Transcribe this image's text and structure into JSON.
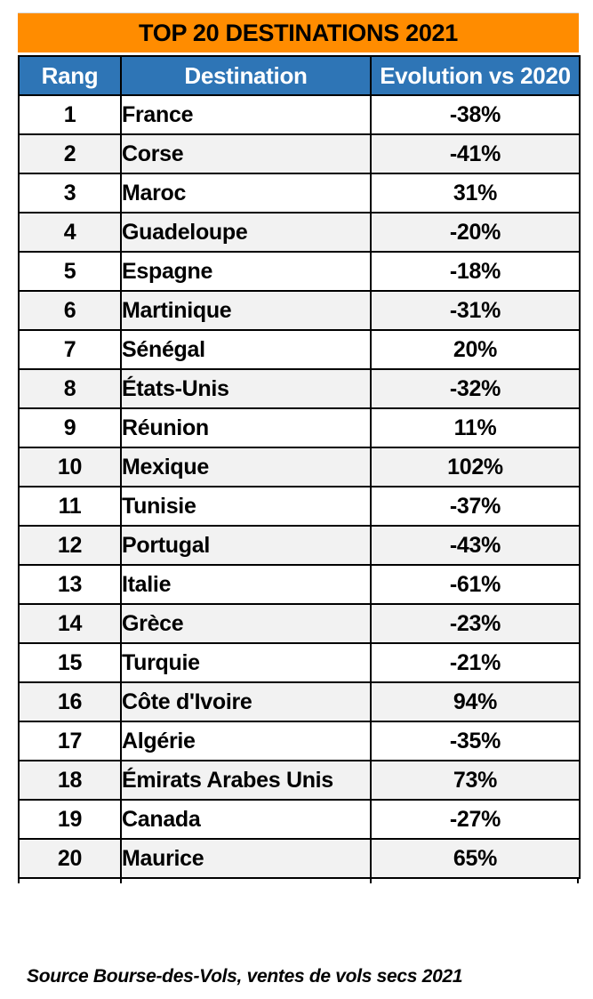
{
  "title": "TOP 20 DESTINATIONS 2021",
  "source_note": "Source Bourse-des-Vols, ventes de vols secs 2021",
  "colors": {
    "title_bg": "#FF8C00",
    "header_bg": "#2E75B6",
    "header_text": "#ffffff",
    "row_alt_bg": "#F2F2F2",
    "border": "#000000",
    "text": "#000000"
  },
  "chart_data": {
    "type": "table",
    "title": "TOP 20 DESTINATIONS 2021",
    "columns": [
      "Rang",
      "Destination",
      "Evolution vs 2020"
    ],
    "rows": [
      [
        "1",
        "France",
        "-38%"
      ],
      [
        "2",
        "Corse",
        "-41%"
      ],
      [
        "3",
        "Maroc",
        "31%"
      ],
      [
        "4",
        "Guadeloupe",
        "-20%"
      ],
      [
        "5",
        "Espagne",
        "-18%"
      ],
      [
        "6",
        "Martinique",
        "-31%"
      ],
      [
        "7",
        "Sénégal",
        "20%"
      ],
      [
        "8",
        "États-Unis",
        "-32%"
      ],
      [
        "9",
        "Réunion",
        "11%"
      ],
      [
        "10",
        "Mexique",
        "102%"
      ],
      [
        "11",
        "Tunisie",
        "-37%"
      ],
      [
        "12",
        "Portugal",
        "-43%"
      ],
      [
        "13",
        "Italie",
        "-61%"
      ],
      [
        "14",
        "Grèce",
        "-23%"
      ],
      [
        "15",
        "Turquie",
        "-21%"
      ],
      [
        "16",
        "Côte d'Ivoire",
        "94%"
      ],
      [
        "17",
        "Algérie",
        "-35%"
      ],
      [
        "18",
        "Émirats Arabes Unis",
        "73%"
      ],
      [
        "19",
        "Canada",
        "-27%"
      ],
      [
        "20",
        "Maurice",
        "65%"
      ]
    ],
    "evolution_values_pct": [
      -38,
      -41,
      31,
      -20,
      -18,
      -31,
      20,
      -32,
      11,
      102,
      -37,
      -43,
      -61,
      -23,
      -21,
      94,
      -35,
      73,
      -27,
      65
    ],
    "layout_hints": {
      "striped_rows": true,
      "stripe_start": "white",
      "grid": true
    }
  }
}
